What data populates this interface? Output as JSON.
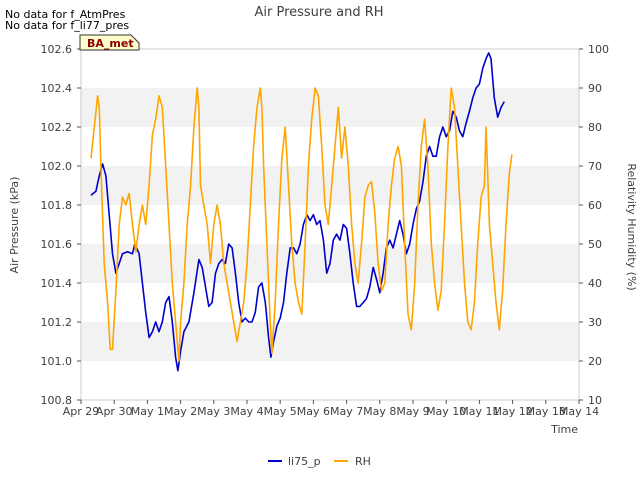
{
  "chart_data": {
    "type": "line",
    "title": "Air Pressure and RH",
    "notes": [
      "No data for f_AtmPres",
      "No data for f_li77_pres"
    ],
    "site_badge": "BA_met",
    "xlabel": "Time",
    "ylabel_left": "Air Pressure (kPa)",
    "ylabel_right": "Relativity Humidity (%)",
    "x_ticks": [
      "Apr 29",
      "Apr 30",
      "May 1",
      "May 2",
      "May 3",
      "May 4",
      "May 5",
      "May 6",
      "May 7",
      "May 8",
      "May 9",
      "May 10",
      "May 11",
      "May 12",
      "May 13",
      "May 14"
    ],
    "x_range_days": [
      0,
      15
    ],
    "y_left_ticks": [
      "100.8",
      "101.0",
      "101.2",
      "101.4",
      "101.6",
      "101.8",
      "102.0",
      "102.2",
      "102.4",
      "102.6"
    ],
    "y_left_range": [
      100.8,
      102.6
    ],
    "y_right_ticks": [
      "10",
      "20",
      "30",
      "40",
      "50",
      "60",
      "70",
      "80",
      "90",
      "100"
    ],
    "y_right_range": [
      10,
      100
    ],
    "grid": "horizontal bands",
    "legend_position": "bottom",
    "series": [
      {
        "name": "li75_p",
        "axis": "left",
        "color": "#0000cc",
        "points": [
          [
            0.3,
            101.85
          ],
          [
            0.45,
            101.87
          ],
          [
            0.55,
            101.95
          ],
          [
            0.65,
            102.01
          ],
          [
            0.75,
            101.95
          ],
          [
            0.85,
            101.75
          ],
          [
            0.95,
            101.55
          ],
          [
            1.05,
            101.45
          ],
          [
            1.15,
            101.5
          ],
          [
            1.25,
            101.55
          ],
          [
            1.4,
            101.56
          ],
          [
            1.55,
            101.55
          ],
          [
            1.62,
            101.6
          ],
          [
            1.75,
            101.55
          ],
          [
            1.85,
            101.4
          ],
          [
            1.95,
            101.25
          ],
          [
            2.05,
            101.12
          ],
          [
            2.15,
            101.15
          ],
          [
            2.25,
            101.2
          ],
          [
            2.35,
            101.15
          ],
          [
            2.45,
            101.2
          ],
          [
            2.55,
            101.3
          ],
          [
            2.65,
            101.33
          ],
          [
            2.75,
            101.2
          ],
          [
            2.85,
            101.02
          ],
          [
            2.92,
            100.95
          ],
          [
            3.0,
            101.05
          ],
          [
            3.1,
            101.15
          ],
          [
            3.25,
            101.2
          ],
          [
            3.4,
            101.35
          ],
          [
            3.55,
            101.52
          ],
          [
            3.65,
            101.48
          ],
          [
            3.75,
            101.38
          ],
          [
            3.85,
            101.28
          ],
          [
            3.95,
            101.3
          ],
          [
            4.05,
            101.45
          ],
          [
            4.15,
            101.5
          ],
          [
            4.25,
            101.52
          ],
          [
            4.35,
            101.5
          ],
          [
            4.45,
            101.6
          ],
          [
            4.55,
            101.58
          ],
          [
            4.65,
            101.45
          ],
          [
            4.75,
            101.3
          ],
          [
            4.85,
            101.2
          ],
          [
            4.95,
            101.22
          ],
          [
            5.05,
            101.2
          ],
          [
            5.15,
            101.2
          ],
          [
            5.25,
            101.25
          ],
          [
            5.35,
            101.38
          ],
          [
            5.45,
            101.4
          ],
          [
            5.55,
            101.3
          ],
          [
            5.65,
            101.12
          ],
          [
            5.72,
            101.02
          ],
          [
            5.8,
            101.1
          ],
          [
            5.9,
            101.18
          ],
          [
            6.0,
            101.22
          ],
          [
            6.1,
            101.3
          ],
          [
            6.2,
            101.45
          ],
          [
            6.3,
            101.58
          ],
          [
            6.4,
            101.58
          ],
          [
            6.5,
            101.55
          ],
          [
            6.6,
            101.6
          ],
          [
            6.7,
            101.7
          ],
          [
            6.8,
            101.75
          ],
          [
            6.9,
            101.72
          ],
          [
            7.0,
            101.75
          ],
          [
            7.1,
            101.7
          ],
          [
            7.2,
            101.72
          ],
          [
            7.3,
            101.62
          ],
          [
            7.4,
            101.45
          ],
          [
            7.5,
            101.5
          ],
          [
            7.6,
            101.62
          ],
          [
            7.7,
            101.65
          ],
          [
            7.8,
            101.62
          ],
          [
            7.9,
            101.7
          ],
          [
            8.0,
            101.68
          ],
          [
            8.1,
            101.55
          ],
          [
            8.2,
            101.4
          ],
          [
            8.3,
            101.28
          ],
          [
            8.4,
            101.28
          ],
          [
            8.5,
            101.3
          ],
          [
            8.6,
            101.32
          ],
          [
            8.7,
            101.38
          ],
          [
            8.8,
            101.48
          ],
          [
            8.9,
            101.42
          ],
          [
            9.0,
            101.35
          ],
          [
            9.1,
            101.45
          ],
          [
            9.2,
            101.58
          ],
          [
            9.3,
            101.62
          ],
          [
            9.4,
            101.58
          ],
          [
            9.5,
            101.65
          ],
          [
            9.6,
            101.72
          ],
          [
            9.7,
            101.65
          ],
          [
            9.8,
            101.55
          ],
          [
            9.9,
            101.6
          ],
          [
            10.0,
            101.7
          ],
          [
            10.1,
            101.78
          ],
          [
            10.2,
            101.82
          ],
          [
            10.3,
            101.92
          ],
          [
            10.4,
            102.05
          ],
          [
            10.5,
            102.1
          ],
          [
            10.6,
            102.05
          ],
          [
            10.7,
            102.05
          ],
          [
            10.8,
            102.15
          ],
          [
            10.9,
            102.2
          ],
          [
            11.0,
            102.15
          ],
          [
            11.1,
            102.18
          ],
          [
            11.2,
            102.28
          ],
          [
            11.3,
            102.25
          ],
          [
            11.4,
            102.18
          ],
          [
            11.5,
            102.15
          ],
          [
            11.6,
            102.22
          ],
          [
            11.7,
            102.28
          ],
          [
            11.8,
            102.35
          ],
          [
            11.9,
            102.4
          ],
          [
            12.0,
            102.42
          ],
          [
            12.1,
            102.5
          ],
          [
            12.2,
            102.55
          ],
          [
            12.28,
            102.58
          ],
          [
            12.35,
            102.55
          ],
          [
            12.45,
            102.35
          ],
          [
            12.55,
            102.25
          ],
          [
            12.65,
            102.3
          ],
          [
            12.75,
            102.33
          ]
        ]
      },
      {
        "name": "RH",
        "axis": "right",
        "color": "#ffa500",
        "points": [
          [
            0.3,
            72
          ],
          [
            0.4,
            80
          ],
          [
            0.5,
            88
          ],
          [
            0.55,
            85
          ],
          [
            0.6,
            70
          ],
          [
            0.7,
            45
          ],
          [
            0.8,
            35
          ],
          [
            0.88,
            23
          ],
          [
            0.95,
            23
          ],
          [
            1.05,
            38
          ],
          [
            1.15,
            55
          ],
          [
            1.25,
            62
          ],
          [
            1.35,
            60
          ],
          [
            1.45,
            63
          ],
          [
            1.55,
            55
          ],
          [
            1.65,
            48
          ],
          [
            1.75,
            55
          ],
          [
            1.85,
            60
          ],
          [
            1.95,
            55
          ],
          [
            2.05,
            65
          ],
          [
            2.15,
            78
          ],
          [
            2.25,
            82
          ],
          [
            2.35,
            88
          ],
          [
            2.45,
            85
          ],
          [
            2.55,
            70
          ],
          [
            2.65,
            55
          ],
          [
            2.75,
            40
          ],
          [
            2.85,
            30
          ],
          [
            2.95,
            20
          ],
          [
            3.0,
            30
          ],
          [
            3.1,
            40
          ],
          [
            3.2,
            55
          ],
          [
            3.3,
            65
          ],
          [
            3.4,
            80
          ],
          [
            3.5,
            90
          ],
          [
            3.55,
            85
          ],
          [
            3.6,
            65
          ],
          [
            3.7,
            60
          ],
          [
            3.8,
            55
          ],
          [
            3.9,
            45
          ],
          [
            4.0,
            55
          ],
          [
            4.1,
            60
          ],
          [
            4.2,
            55
          ],
          [
            4.3,
            45
          ],
          [
            4.4,
            40
          ],
          [
            4.5,
            35
          ],
          [
            4.6,
            30
          ],
          [
            4.7,
            25
          ],
          [
            4.8,
            30
          ],
          [
            4.9,
            35
          ],
          [
            5.0,
            45
          ],
          [
            5.1,
            60
          ],
          [
            5.2,
            75
          ],
          [
            5.3,
            85
          ],
          [
            5.4,
            90
          ],
          [
            5.45,
            85
          ],
          [
            5.5,
            70
          ],
          [
            5.6,
            50
          ],
          [
            5.7,
            30
          ],
          [
            5.75,
            22
          ],
          [
            5.85,
            35
          ],
          [
            5.95,
            55
          ],
          [
            6.05,
            72
          ],
          [
            6.15,
            80
          ],
          [
            6.25,
            65
          ],
          [
            6.35,
            50
          ],
          [
            6.45,
            40
          ],
          [
            6.55,
            35
          ],
          [
            6.65,
            32
          ],
          [
            6.75,
            50
          ],
          [
            6.85,
            70
          ],
          [
            6.95,
            82
          ],
          [
            7.05,
            90
          ],
          [
            7.15,
            88
          ],
          [
            7.25,
            75
          ],
          [
            7.35,
            60
          ],
          [
            7.45,
            55
          ],
          [
            7.55,
            65
          ],
          [
            7.65,
            75
          ],
          [
            7.75,
            85
          ],
          [
            7.85,
            72
          ],
          [
            7.95,
            80
          ],
          [
            8.05,
            70
          ],
          [
            8.15,
            55
          ],
          [
            8.25,
            45
          ],
          [
            8.35,
            40
          ],
          [
            8.45,
            50
          ],
          [
            8.55,
            62
          ],
          [
            8.65,
            65
          ],
          [
            8.75,
            66
          ],
          [
            8.85,
            58
          ],
          [
            8.95,
            45
          ],
          [
            9.05,
            38
          ],
          [
            9.15,
            40
          ],
          [
            9.25,
            55
          ],
          [
            9.35,
            65
          ],
          [
            9.45,
            72
          ],
          [
            9.55,
            75
          ],
          [
            9.65,
            70
          ],
          [
            9.75,
            50
          ],
          [
            9.85,
            32
          ],
          [
            9.95,
            28
          ],
          [
            10.05,
            40
          ],
          [
            10.15,
            60
          ],
          [
            10.25,
            75
          ],
          [
            10.35,
            82
          ],
          [
            10.45,
            70
          ],
          [
            10.55,
            50
          ],
          [
            10.65,
            40
          ],
          [
            10.75,
            33
          ],
          [
            10.85,
            38
          ],
          [
            10.95,
            55
          ],
          [
            11.05,
            75
          ],
          [
            11.15,
            90
          ],
          [
            11.25,
            85
          ],
          [
            11.35,
            70
          ],
          [
            11.45,
            55
          ],
          [
            11.55,
            40
          ],
          [
            11.65,
            30
          ],
          [
            11.75,
            28
          ],
          [
            11.85,
            35
          ],
          [
            11.95,
            50
          ],
          [
            12.05,
            62
          ],
          [
            12.15,
            65
          ],
          [
            12.2,
            80
          ],
          [
            12.25,
            68
          ],
          [
            12.3,
            55
          ],
          [
            12.4,
            45
          ],
          [
            12.5,
            35
          ],
          [
            12.6,
            28
          ],
          [
            12.7,
            38
          ],
          [
            12.8,
            55
          ],
          [
            12.9,
            68
          ],
          [
            12.98,
            73
          ]
        ]
      }
    ]
  }
}
